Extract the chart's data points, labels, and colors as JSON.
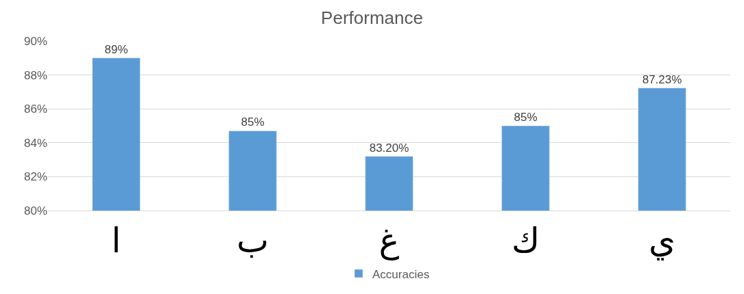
{
  "chart_data": {
    "type": "bar",
    "title": "Performance",
    "categories": [
      "ا",
      "ب",
      "غ",
      "ك",
      "ي"
    ],
    "series": [
      {
        "name": "Accuracies",
        "color": "#5b9bd5",
        "values": [
          89,
          84.7,
          83.2,
          85,
          87.23
        ],
        "value_labels": [
          "89%",
          "85%",
          "83.20%",
          "85%",
          "87.23%"
        ]
      }
    ],
    "ylim": [
      80,
      90
    ],
    "yticks": [
      {
        "value": 80,
        "label": "80%"
      },
      {
        "value": 82,
        "label": "82%"
      },
      {
        "value": 84,
        "label": "84%"
      },
      {
        "value": 86,
        "label": "86%"
      },
      {
        "value": 88,
        "label": "88%"
      },
      {
        "value": 90,
        "label": "90%"
      }
    ],
    "grid": "y",
    "legend": "bottom"
  }
}
